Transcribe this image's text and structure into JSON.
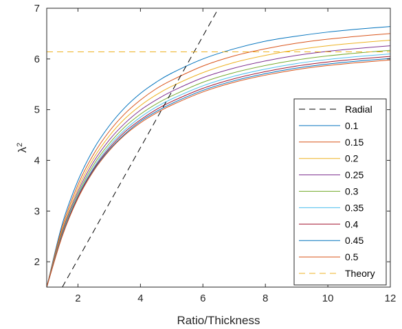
{
  "chart_data": {
    "type": "line",
    "xlabel": "Ratio/Thickness",
    "ylabel": "λ",
    "ylabel_superscript": "2",
    "xlim": [
      1,
      12
    ],
    "ylim": [
      1.5,
      7
    ],
    "xticks": [
      2,
      4,
      6,
      8,
      10,
      12
    ],
    "yticks": [
      2,
      3,
      4,
      5,
      6,
      7
    ],
    "grid": false,
    "legend_position": "lower-right",
    "legend": [
      "Radial",
      "0.1",
      "0.15",
      "0.2",
      "0.25",
      "0.3",
      "0.35",
      "0.4",
      "0.45",
      "0.5",
      "Theory"
    ],
    "x": [
      1,
      1.5,
      2,
      2.5,
      3,
      3.5,
      4,
      4.5,
      5,
      6,
      7,
      8,
      9,
      10,
      11,
      12
    ],
    "series": [
      {
        "name": "0.1",
        "color": "#0072BD",
        "values": [
          1.5,
          2.75,
          3.6,
          4.22,
          4.68,
          5.04,
          5.32,
          5.54,
          5.72,
          6.0,
          6.2,
          6.35,
          6.45,
          6.53,
          6.59,
          6.64
        ]
      },
      {
        "name": "0.15",
        "color": "#D95319",
        "values": [
          1.5,
          2.69,
          3.52,
          4.12,
          4.57,
          4.92,
          5.19,
          5.41,
          5.58,
          5.86,
          6.06,
          6.2,
          6.31,
          6.39,
          6.45,
          6.5
        ]
      },
      {
        "name": "0.2",
        "color": "#EDB120",
        "values": [
          1.5,
          2.64,
          3.45,
          4.04,
          4.48,
          4.82,
          5.08,
          5.29,
          5.46,
          5.73,
          5.93,
          6.07,
          6.18,
          6.26,
          6.32,
          6.37
        ]
      },
      {
        "name": "0.25",
        "color": "#7E2F8E",
        "values": [
          1.5,
          2.6,
          3.39,
          3.97,
          4.4,
          4.73,
          4.99,
          5.19,
          5.36,
          5.63,
          5.82,
          5.96,
          6.07,
          6.15,
          6.21,
          6.26
        ]
      },
      {
        "name": "0.3",
        "color": "#77AC30",
        "values": [
          1.5,
          2.57,
          3.34,
          3.91,
          4.33,
          4.66,
          4.91,
          5.11,
          5.27,
          5.54,
          5.73,
          5.87,
          5.98,
          6.06,
          6.12,
          6.17
        ]
      },
      {
        "name": "0.35",
        "color": "#4DBEEE",
        "values": [
          1.5,
          2.55,
          3.31,
          3.86,
          4.28,
          4.6,
          4.85,
          5.05,
          5.21,
          5.47,
          5.66,
          5.8,
          5.91,
          5.99,
          6.05,
          6.1
        ]
      },
      {
        "name": "0.4",
        "color": "#A2142F",
        "values": [
          1.5,
          2.53,
          3.28,
          3.83,
          4.24,
          4.56,
          4.8,
          5.0,
          5.16,
          5.42,
          5.61,
          5.75,
          5.86,
          5.94,
          6.0,
          6.05
        ]
      },
      {
        "name": "0.45",
        "color": "#0072BD",
        "values": [
          1.5,
          2.52,
          3.26,
          3.81,
          4.21,
          4.52,
          4.77,
          4.96,
          5.12,
          5.38,
          5.57,
          5.71,
          5.82,
          5.9,
          5.96,
          6.01
        ]
      },
      {
        "name": "0.5",
        "color": "#D95319",
        "values": [
          1.5,
          2.51,
          3.25,
          3.79,
          4.19,
          4.5,
          4.74,
          4.93,
          5.09,
          5.35,
          5.54,
          5.68,
          5.79,
          5.87,
          5.93,
          5.98
        ]
      }
    ],
    "radial_line": {
      "name": "Radial",
      "color": "#000000",
      "x": [
        1.5,
        6.5
      ],
      "y": [
        1.5,
        7.0
      ]
    },
    "theory_line": {
      "name": "Theory",
      "color": "#EDB120",
      "y": 6.14
    }
  }
}
